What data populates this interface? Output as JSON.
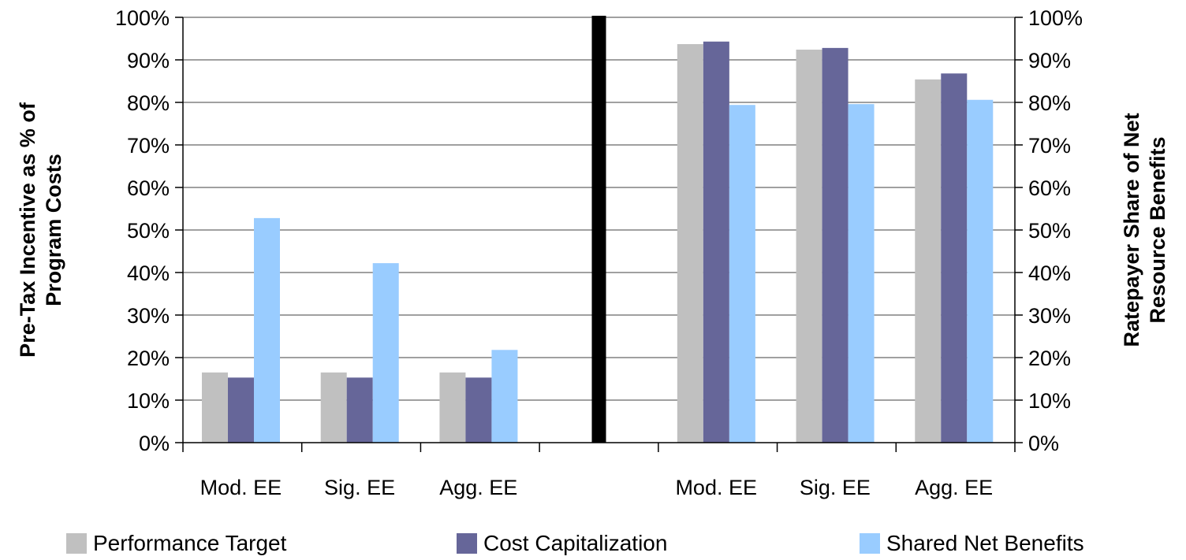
{
  "chart_data": {
    "type": "bar",
    "y_ticks": [
      "0%",
      "10%",
      "20%",
      "30%",
      "40%",
      "50%",
      "60%",
      "70%",
      "80%",
      "90%",
      "100%"
    ],
    "ylim": [
      0,
      100
    ],
    "grid": true,
    "legend_position": "bottom",
    "left_panel": {
      "ylabel": "Pre-Tax Incentive as % of Program Costs",
      "ylabel_lines": [
        "Pre-Tax Incentive as % of",
        "Program Costs"
      ],
      "categories": [
        "Mod. EE",
        "Sig. EE",
        "Agg. EE"
      ],
      "series": [
        {
          "name": "Performance Target",
          "values": [
            16.5,
            16.5,
            16.5
          ]
        },
        {
          "name": "Cost Capitalization",
          "values": [
            15.3,
            15.3,
            15.3
          ]
        },
        {
          "name": "Shared Net Benefits",
          "values": [
            52.8,
            42.2,
            21.8
          ]
        }
      ]
    },
    "right_panel": {
      "ylabel": "Ratepayer Share of Net Resource Benefits",
      "ylabel_lines": [
        "Ratepayer Share of Net",
        "Resource Benefits"
      ],
      "categories": [
        "Mod. EE",
        "Sig. EE",
        "Agg. EE"
      ],
      "series": [
        {
          "name": "Performance Target",
          "values": [
            93.7,
            92.4,
            85.4
          ]
        },
        {
          "name": "Cost Capitalization",
          "values": [
            94.3,
            92.8,
            86.8
          ]
        },
        {
          "name": "Shared Net Benefits",
          "values": [
            79.4,
            79.6,
            80.6
          ]
        }
      ]
    }
  },
  "legend": [
    {
      "label": "Performance Target",
      "color": "#c0c0c0"
    },
    {
      "label": "Cost Capitalization",
      "color": "#666699"
    },
    {
      "label": "Shared Net Benefits",
      "color": "#99ccff"
    }
  ],
  "colors": {
    "performance_target": "#c0c0c0",
    "cost_capitalization": "#666699",
    "shared_net_benefits": "#99ccff",
    "divider": "#000000",
    "gridline": "#808080"
  }
}
